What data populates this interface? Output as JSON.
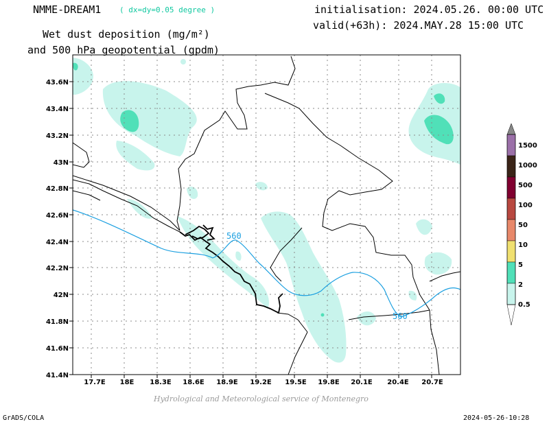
{
  "header": {
    "model": "NMME-DREAM1",
    "resolution": "( dx=dy=0.05 degree )",
    "initialisation": "initialisation: 2024.05.26. 00:00 UTC",
    "valid": "valid(+63h): 2024.MAY.28 15:00 UTC",
    "variable_line1": "Wet dust deposition (mg/m²)",
    "variable_line2": "and 500 hPa geopotential (gpdm)"
  },
  "footer": {
    "credit": "Hydrological and Meteorological service of Montenegro",
    "software": "GrADS/COLA",
    "timestamp": "2024-05-26-10:28"
  },
  "map": {
    "lon_range": [
      17.5,
      21.0
    ],
    "lat_range": [
      41.4,
      43.7
    ],
    "x_ticks": [
      "17.7E",
      "18E",
      "18.3E",
      "18.6E",
      "18.9E",
      "19.2E",
      "19.5E",
      "19.8E",
      "20.1E",
      "20.4E",
      "20.7E"
    ],
    "y_ticks": [
      "41.4N",
      "41.6N",
      "41.8N",
      "42N",
      "42.2N",
      "42.4N",
      "42.6N",
      "42.8N",
      "43N",
      "43.2N",
      "43.4N",
      "43.6N"
    ],
    "contour_label": "560",
    "contour_color": "#1a9fe0"
  },
  "legend": {
    "labels": [
      "1500",
      "1000",
      "500",
      "100",
      "50",
      "10",
      "5",
      "2",
      "0.5"
    ],
    "colors": [
      "#9b70a8",
      "#3a2418",
      "#800030",
      "#b84840",
      "#e8886a",
      "#f0e070",
      "#50e0b8",
      "#c8f4ec"
    ]
  }
}
